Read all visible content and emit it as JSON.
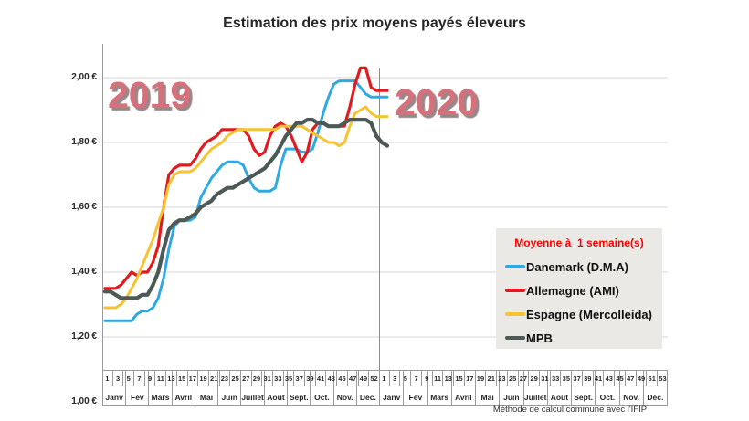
{
  "title": "Estimation des prix moyens payés éleveurs",
  "footnote": "Méthode de calcul commune avec l'IFIP",
  "legend": {
    "title": "Moyenne à  1 semaine(s)"
  },
  "chart_data": {
    "type": "line",
    "title": "Estimation des prix moyens payés éleveurs",
    "grid": true,
    "legend_position": "right-middle",
    "y_axis": {
      "range": [
        1.0,
        2.1
      ],
      "ticks": [
        {
          "label": "2,00 €",
          "value": 2.0
        },
        {
          "label": "1,80 €",
          "value": 1.8
        },
        {
          "label": "1,60 €",
          "value": 1.6
        },
        {
          "label": "1,40 €",
          "value": 1.4
        },
        {
          "label": "1,20 €",
          "value": 1.2
        },
        {
          "label": "1,00 €",
          "value": 1.0
        }
      ]
    },
    "x_axis": {
      "unit_row1": "semaines",
      "unit_row2": "mois",
      "years": [
        {
          "label": "2019",
          "weeks": 52,
          "tick_labels": [
            "1",
            "3",
            "5",
            "7",
            "9",
            "11",
            "13",
            "15",
            "17",
            "19",
            "21",
            "23",
            "25",
            "27",
            "29",
            "31",
            "33",
            "35",
            "37",
            "39",
            "41",
            "43",
            "45",
            "47",
            "49",
            "52"
          ],
          "months": [
            "Janv",
            "Fév",
            "Mars",
            "Avril",
            "Mai",
            "Juin",
            "Juillet",
            "Août",
            "Sept.",
            "Oct.",
            "Nov.",
            "Déc."
          ]
        },
        {
          "label": "2020",
          "weeks": 53,
          "tick_labels": [
            "1",
            "3",
            "5",
            "7",
            "9",
            "11",
            "13",
            "15",
            "17",
            "19",
            "21",
            "23",
            "25",
            "27",
            "29",
            "31",
            "33",
            "35",
            "37",
            "39",
            "41",
            "43",
            "45",
            "47",
            "49",
            "51",
            "53"
          ],
          "months": [
            "Janv",
            "Fév",
            "Mars",
            "Avril",
            "Mai",
            "Juin",
            "Juillet",
            "Août",
            "Sept.",
            "Oct.",
            "Nov.",
            "Déc."
          ]
        }
      ]
    },
    "series": [
      {
        "name": "Danemark (D.M.A)",
        "color": "#2fa9e1",
        "stroke_width": 3,
        "values_2019": [
          1.25,
          1.25,
          1.25,
          1.25,
          1.25,
          1.25,
          1.27,
          1.28,
          1.28,
          1.29,
          1.32,
          1.38,
          1.47,
          1.54,
          1.56,
          1.56,
          1.56,
          1.57,
          1.63,
          1.66,
          1.69,
          1.71,
          1.73,
          1.74,
          1.74,
          1.74,
          1.73,
          1.69,
          1.66,
          1.65,
          1.65,
          1.65,
          1.66,
          1.73,
          1.78,
          1.78,
          1.78,
          1.77,
          1.77,
          1.78,
          1.83,
          1.89,
          1.94,
          1.98,
          1.99,
          1.99,
          1.99,
          1.99,
          1.97,
          1.95,
          1.94,
          1.94
        ],
        "values_2020": [
          1.94,
          1.94
        ]
      },
      {
        "name": "Allemagne (AMI)",
        "color": "#e2191f",
        "stroke_width": 3.2,
        "values_2019": [
          1.35,
          1.35,
          1.35,
          1.36,
          1.38,
          1.4,
          1.39,
          1.4,
          1.4,
          1.43,
          1.48,
          1.6,
          1.7,
          1.72,
          1.73,
          1.73,
          1.73,
          1.75,
          1.78,
          1.8,
          1.81,
          1.82,
          1.84,
          1.84,
          1.84,
          1.84,
          1.84,
          1.82,
          1.78,
          1.76,
          1.77,
          1.82,
          1.85,
          1.86,
          1.85,
          1.82,
          1.78,
          1.74,
          1.77,
          1.84,
          1.86,
          1.86,
          1.85,
          1.85,
          1.85,
          1.85,
          1.91,
          1.98,
          2.03,
          2.03,
          1.97,
          1.96
        ],
        "values_2020": [
          1.96,
          1.96
        ]
      },
      {
        "name": "Espagne (Mercolleida)",
        "color": "#f7c331",
        "stroke_width": 3,
        "values_2019": [
          1.29,
          1.29,
          1.29,
          1.3,
          1.32,
          1.35,
          1.38,
          1.42,
          1.46,
          1.5,
          1.55,
          1.6,
          1.67,
          1.7,
          1.71,
          1.71,
          1.71,
          1.72,
          1.74,
          1.76,
          1.78,
          1.79,
          1.8,
          1.82,
          1.83,
          1.84,
          1.84,
          1.84,
          1.84,
          1.84,
          1.84,
          1.84,
          1.84,
          1.85,
          1.85,
          1.85,
          1.85,
          1.85,
          1.84,
          1.83,
          1.82,
          1.81,
          1.8,
          1.8,
          1.79,
          1.8,
          1.85,
          1.89,
          1.9,
          1.91,
          1.89,
          1.88
        ],
        "values_2020": [
          1.88,
          1.88
        ]
      },
      {
        "name": "MPB",
        "color": "#4c5956",
        "stroke_width": 4.2,
        "values_2019": [
          1.34,
          1.34,
          1.33,
          1.32,
          1.32,
          1.32,
          1.32,
          1.33,
          1.33,
          1.36,
          1.4,
          1.47,
          1.53,
          1.55,
          1.56,
          1.56,
          1.57,
          1.58,
          1.6,
          1.61,
          1.62,
          1.64,
          1.65,
          1.66,
          1.66,
          1.67,
          1.68,
          1.69,
          1.7,
          1.71,
          1.72,
          1.74,
          1.76,
          1.79,
          1.82,
          1.84,
          1.86,
          1.86,
          1.87,
          1.87,
          1.86,
          1.86,
          1.85,
          1.85,
          1.85,
          1.86,
          1.87,
          1.87,
          1.87,
          1.87,
          1.86,
          1.82
        ],
        "values_2020": [
          1.8,
          1.79
        ]
      }
    ]
  }
}
